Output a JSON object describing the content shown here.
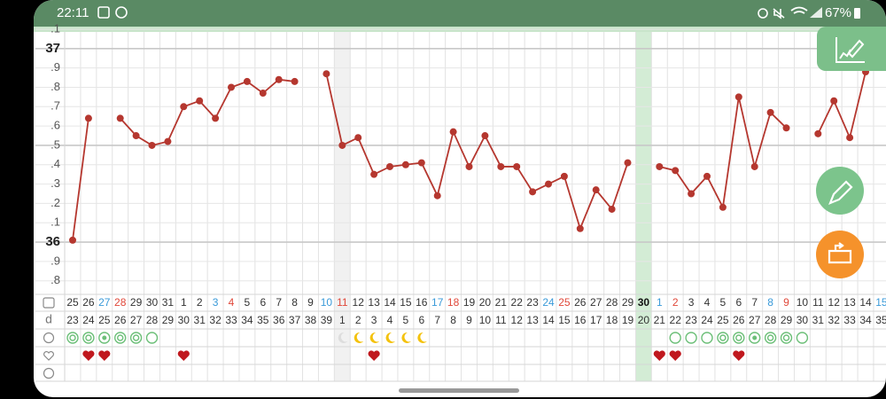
{
  "status_bar": {
    "time": "22:11",
    "battery": "67%"
  },
  "chart_data": {
    "type": "line",
    "dates": [
      25,
      26,
      27,
      28,
      29,
      30,
      31,
      1,
      2,
      3,
      4,
      5,
      6,
      7,
      8,
      9,
      10,
      11,
      12,
      13,
      14,
      15,
      16,
      17,
      18,
      19,
      20,
      21,
      22,
      23,
      24,
      25,
      26,
      27,
      28,
      29,
      30,
      1,
      2,
      3,
      4,
      5,
      6,
      7,
      8,
      9,
      10,
      11,
      12,
      13,
      14,
      15
    ],
    "date_colors": [
      "#333",
      "#333",
      "#3a9ad9",
      "#e0483a",
      "#333",
      "#333",
      "#333",
      "#333",
      "#333",
      "#3a9ad9",
      "#e0483a",
      "#333",
      "#333",
      "#333",
      "#333",
      "#333",
      "#3a9ad9",
      "#e0483a",
      "#333",
      "#333",
      "#333",
      "#333",
      "#333",
      "#3a9ad9",
      "#e0483a",
      "#333",
      "#333",
      "#333",
      "#333",
      "#333",
      "#3a9ad9",
      "#e0483a",
      "#333",
      "#333",
      "#333",
      "#333",
      "#111",
      "#3a9ad9",
      "#e0483a",
      "#333",
      "#333",
      "#333",
      "#333",
      "#333",
      "#3a9ad9",
      "#e0483a",
      "#333",
      "#333",
      "#333",
      "#333",
      "#333",
      "#3a9ad9"
    ],
    "cycle_day_label": "d",
    "cycle_days": [
      23,
      24,
      25,
      26,
      27,
      28,
      29,
      30,
      31,
      32,
      33,
      34,
      35,
      36,
      37,
      38,
      39,
      1,
      2,
      3,
      4,
      5,
      6,
      7,
      8,
      9,
      10,
      11,
      12,
      13,
      14,
      15,
      16,
      17,
      18,
      19,
      20,
      21,
      22,
      23,
      24,
      25,
      26,
      27,
      28,
      29,
      30,
      31,
      32,
      33,
      34,
      35
    ],
    "series": [
      {
        "color": "#b5372f",
        "values": [
          36.01,
          36.64,
          null,
          36.64,
          36.55,
          36.5,
          36.52,
          36.7,
          36.73,
          36.64,
          36.8,
          36.83,
          36.77,
          36.84,
          36.83,
          null,
          36.87,
          36.5,
          36.54,
          36.35,
          36.39,
          36.4,
          36.41,
          36.24,
          36.57,
          36.39,
          36.55,
          36.39,
          36.39,
          36.26,
          36.3,
          36.34,
          36.07,
          36.27,
          36.17,
          36.41,
          null,
          36.39,
          36.37,
          36.25,
          36.34,
          36.18,
          36.75,
          36.39,
          36.67,
          36.59,
          null,
          36.56,
          36.73,
          36.54,
          36.88,
          null
        ]
      }
    ],
    "ylim": [
      35.73,
      37.1
    ],
    "yticks": [
      {
        "value": 35.8,
        "label": ".8"
      },
      {
        "value": 35.9,
        "label": ".9"
      },
      36,
      {
        "value": 36.1,
        "label": ".1"
      },
      {
        "value": 36.2,
        "label": ".2"
      },
      {
        "value": 36.3,
        "label": ".3"
      },
      {
        "value": 36.4,
        "label": ".4"
      },
      {
        "value": 36.5,
        "label": ".5"
      },
      {
        "value": 36.6,
        "label": ".6"
      },
      {
        "value": 36.7,
        "label": ".7"
      },
      {
        "value": 36.8,
        "label": ".8"
      },
      {
        "value": 36.9,
        "label": ".9"
      },
      37,
      {
        "value": 37.1,
        "label": ".1"
      }
    ],
    "grid": true
  }
}
